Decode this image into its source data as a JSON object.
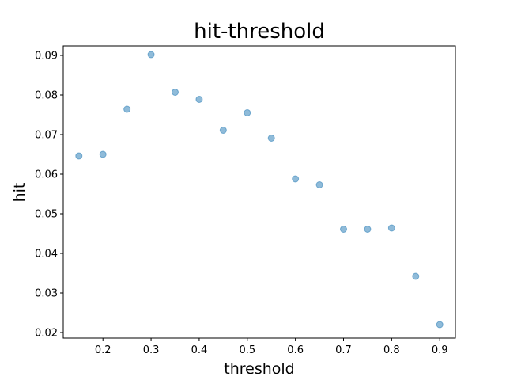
{
  "chart_data": {
    "type": "scatter",
    "title": "hit-threshold",
    "xlabel": "threshold",
    "ylabel": "hit",
    "xlim": [
      0.1175,
      0.9325
    ],
    "ylim": [
      0.0186,
      0.0924
    ],
    "xticks": [
      0.2,
      0.3,
      0.4,
      0.5,
      0.6,
      0.7,
      0.8,
      0.9
    ],
    "xtick_labels": [
      "0.2",
      "0.3",
      "0.4",
      "0.5",
      "0.6",
      "0.7",
      "0.8",
      "0.9"
    ],
    "yticks": [
      0.02,
      0.03,
      0.04,
      0.05,
      0.06,
      0.07,
      0.08,
      0.09
    ],
    "ytick_labels": [
      "0.02",
      "0.03",
      "0.04",
      "0.05",
      "0.06",
      "0.07",
      "0.08",
      "0.09"
    ],
    "grid": false,
    "marker_color": "#1f77b4",
    "marker_alpha": 0.5,
    "points": [
      {
        "x": 0.15,
        "y": 0.0646
      },
      {
        "x": 0.2,
        "y": 0.065
      },
      {
        "x": 0.25,
        "y": 0.0764
      },
      {
        "x": 0.3,
        "y": 0.0902
      },
      {
        "x": 0.35,
        "y": 0.0807
      },
      {
        "x": 0.4,
        "y": 0.0789
      },
      {
        "x": 0.45,
        "y": 0.0711
      },
      {
        "x": 0.5,
        "y": 0.0755
      },
      {
        "x": 0.55,
        "y": 0.0691
      },
      {
        "x": 0.6,
        "y": 0.0588
      },
      {
        "x": 0.65,
        "y": 0.0573
      },
      {
        "x": 0.7,
        "y": 0.0461
      },
      {
        "x": 0.75,
        "y": 0.0461
      },
      {
        "x": 0.8,
        "y": 0.0464
      },
      {
        "x": 0.85,
        "y": 0.0342
      },
      {
        "x": 0.9,
        "y": 0.022
      }
    ]
  }
}
